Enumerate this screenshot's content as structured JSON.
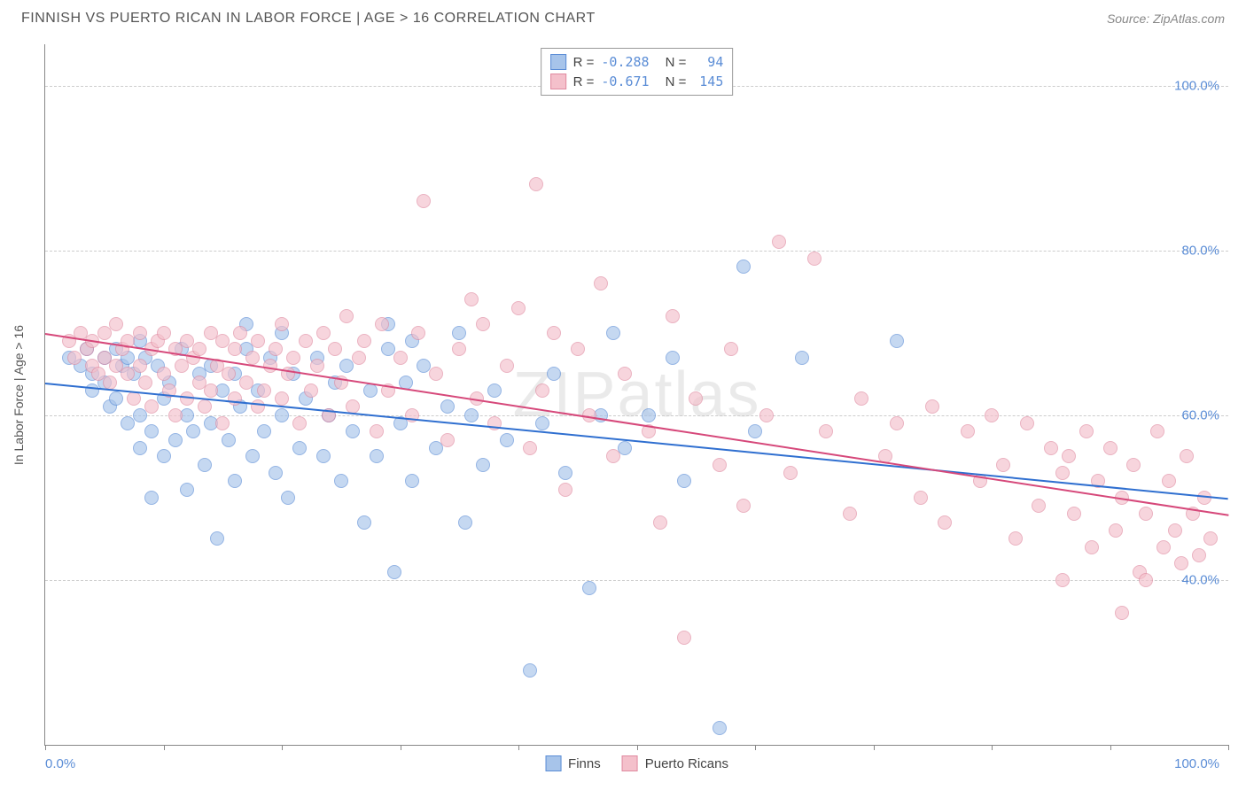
{
  "header": {
    "title": "FINNISH VS PUERTO RICAN IN LABOR FORCE | AGE > 16 CORRELATION CHART",
    "source": "Source: ZipAtlas.com"
  },
  "chart": {
    "type": "scatter",
    "watermark": "ZIPatlas",
    "y_axis_label": "In Labor Force | Age > 16",
    "xlim": [
      0,
      100
    ],
    "ylim": [
      20,
      105
    ],
    "x_min_label": "0.0%",
    "x_max_label": "100.0%",
    "x_ticks": [
      0,
      10,
      20,
      30,
      40,
      50,
      60,
      70,
      80,
      90,
      100
    ],
    "y_ticks": [
      {
        "v": 40,
        "label": "40.0%"
      },
      {
        "v": 60,
        "label": "60.0%"
      },
      {
        "v": 80,
        "label": "80.0%"
      },
      {
        "v": 100,
        "label": "100.0%"
      }
    ],
    "grid_color": "#cccccc",
    "background_color": "#ffffff",
    "marker_size": 16,
    "series": [
      {
        "name": "Finns",
        "fill": "#a7c4ea",
        "stroke": "#5b8dd6",
        "R": "-0.288",
        "N": "94",
        "trend": {
          "x1": 0,
          "y1": 64,
          "x2": 100,
          "y2": 50,
          "color": "#2f6fd0"
        },
        "points": [
          [
            2,
            67
          ],
          [
            3,
            66
          ],
          [
            3.5,
            68
          ],
          [
            4,
            65
          ],
          [
            4,
            63
          ],
          [
            5,
            67
          ],
          [
            5,
            64
          ],
          [
            5.5,
            61
          ],
          [
            6,
            68
          ],
          [
            6,
            62
          ],
          [
            6.5,
            66
          ],
          [
            7,
            67
          ],
          [
            7,
            59
          ],
          [
            7.5,
            65
          ],
          [
            8,
            60
          ],
          [
            8,
            56
          ],
          [
            8.5,
            67
          ],
          [
            9,
            58
          ],
          [
            9,
            50
          ],
          [
            9.5,
            66
          ],
          [
            10,
            62
          ],
          [
            10,
            55
          ],
          [
            10.5,
            64
          ],
          [
            11,
            57
          ],
          [
            11.5,
            68
          ],
          [
            12,
            60
          ],
          [
            12,
            51
          ],
          [
            12.5,
            58
          ],
          [
            13,
            65
          ],
          [
            13.5,
            54
          ],
          [
            14,
            66
          ],
          [
            14,
            59
          ],
          [
            14.5,
            45
          ],
          [
            15,
            63
          ],
          [
            15.5,
            57
          ],
          [
            16,
            65
          ],
          [
            16,
            52
          ],
          [
            16.5,
            61
          ],
          [
            17,
            68
          ],
          [
            17.5,
            55
          ],
          [
            18,
            63
          ],
          [
            18.5,
            58
          ],
          [
            19,
            67
          ],
          [
            19.5,
            53
          ],
          [
            20,
            70
          ],
          [
            20,
            60
          ],
          [
            20.5,
            50
          ],
          [
            21,
            65
          ],
          [
            21.5,
            56
          ],
          [
            22,
            62
          ],
          [
            23,
            67
          ],
          [
            23.5,
            55
          ],
          [
            24,
            60
          ],
          [
            24.5,
            64
          ],
          [
            25,
            52
          ],
          [
            25.5,
            66
          ],
          [
            26,
            58
          ],
          [
            27,
            47
          ],
          [
            27.5,
            63
          ],
          [
            28,
            55
          ],
          [
            29,
            68
          ],
          [
            29.5,
            41
          ],
          [
            30,
            59
          ],
          [
            30.5,
            64
          ],
          [
            31,
            52
          ],
          [
            32,
            66
          ],
          [
            33,
            56
          ],
          [
            34,
            61
          ],
          [
            35,
            70
          ],
          [
            35.5,
            47
          ],
          [
            36,
            60
          ],
          [
            37,
            54
          ],
          [
            38,
            63
          ],
          [
            39,
            57
          ],
          [
            41,
            29
          ],
          [
            42,
            59
          ],
          [
            43,
            65
          ],
          [
            44,
            53
          ],
          [
            46,
            39
          ],
          [
            47,
            60
          ],
          [
            48,
            70
          ],
          [
            49,
            56
          ],
          [
            51,
            60
          ],
          [
            53,
            67
          ],
          [
            54,
            52
          ],
          [
            57,
            22
          ],
          [
            59,
            78
          ],
          [
            60,
            58
          ],
          [
            64,
            67
          ],
          [
            72,
            69
          ],
          [
            29,
            71
          ],
          [
            31,
            69
          ],
          [
            17,
            71
          ],
          [
            8,
            69
          ]
        ]
      },
      {
        "name": "Puerto Ricans",
        "fill": "#f4c0cb",
        "stroke": "#e08aa0",
        "R": "-0.671",
        "N": "145",
        "trend": {
          "x1": 0,
          "y1": 70,
          "x2": 100,
          "y2": 48,
          "color": "#d6487a"
        },
        "points": [
          [
            2,
            69
          ],
          [
            2.5,
            67
          ],
          [
            3,
            70
          ],
          [
            3.5,
            68
          ],
          [
            4,
            66
          ],
          [
            4,
            69
          ],
          [
            4.5,
            65
          ],
          [
            5,
            70
          ],
          [
            5,
            67
          ],
          [
            5.5,
            64
          ],
          [
            6,
            71
          ],
          [
            6,
            66
          ],
          [
            6.5,
            68
          ],
          [
            7,
            65
          ],
          [
            7,
            69
          ],
          [
            7.5,
            62
          ],
          [
            8,
            70
          ],
          [
            8,
            66
          ],
          [
            8.5,
            64
          ],
          [
            9,
            68
          ],
          [
            9,
            61
          ],
          [
            9.5,
            69
          ],
          [
            10,
            65
          ],
          [
            10,
            70
          ],
          [
            10.5,
            63
          ],
          [
            11,
            68
          ],
          [
            11,
            60
          ],
          [
            11.5,
            66
          ],
          [
            12,
            69
          ],
          [
            12,
            62
          ],
          [
            12.5,
            67
          ],
          [
            13,
            64
          ],
          [
            13,
            68
          ],
          [
            13.5,
            61
          ],
          [
            14,
            70
          ],
          [
            14,
            63
          ],
          [
            14.5,
            66
          ],
          [
            15,
            69
          ],
          [
            15,
            59
          ],
          [
            15.5,
            65
          ],
          [
            16,
            68
          ],
          [
            16,
            62
          ],
          [
            16.5,
            70
          ],
          [
            17,
            64
          ],
          [
            17.5,
            67
          ],
          [
            18,
            61
          ],
          [
            18,
            69
          ],
          [
            18.5,
            63
          ],
          [
            19,
            66
          ],
          [
            19.5,
            68
          ],
          [
            20,
            62
          ],
          [
            20,
            71
          ],
          [
            20.5,
            65
          ],
          [
            21,
            67
          ],
          [
            21.5,
            59
          ],
          [
            22,
            69
          ],
          [
            22.5,
            63
          ],
          [
            23,
            66
          ],
          [
            23.5,
            70
          ],
          [
            24,
            60
          ],
          [
            24.5,
            68
          ],
          [
            25,
            64
          ],
          [
            25.5,
            72
          ],
          [
            26,
            61
          ],
          [
            26.5,
            67
          ],
          [
            27,
            69
          ],
          [
            28,
            58
          ],
          [
            28.5,
            71
          ],
          [
            29,
            63
          ],
          [
            30,
            67
          ],
          [
            31,
            60
          ],
          [
            31.5,
            70
          ],
          [
            32,
            86
          ],
          [
            33,
            65
          ],
          [
            34,
            57
          ],
          [
            35,
            68
          ],
          [
            36,
            74
          ],
          [
            36.5,
            62
          ],
          [
            37,
            71
          ],
          [
            38,
            59
          ],
          [
            39,
            66
          ],
          [
            40,
            73
          ],
          [
            41,
            56
          ],
          [
            41.5,
            88
          ],
          [
            42,
            63
          ],
          [
            43,
            70
          ],
          [
            44,
            51
          ],
          [
            45,
            68
          ],
          [
            46,
            60
          ],
          [
            47,
            76
          ],
          [
            48,
            55
          ],
          [
            49,
            65
          ],
          [
            51,
            58
          ],
          [
            52,
            47
          ],
          [
            53,
            72
          ],
          [
            54,
            33
          ],
          [
            55,
            62
          ],
          [
            57,
            54
          ],
          [
            58,
            68
          ],
          [
            59,
            49
          ],
          [
            61,
            60
          ],
          [
            62,
            81
          ],
          [
            63,
            53
          ],
          [
            65,
            79
          ],
          [
            66,
            58
          ],
          [
            68,
            48
          ],
          [
            69,
            62
          ],
          [
            71,
            55
          ],
          [
            72,
            59
          ],
          [
            74,
            50
          ],
          [
            75,
            61
          ],
          [
            76,
            47
          ],
          [
            78,
            58
          ],
          [
            79,
            52
          ],
          [
            80,
            60
          ],
          [
            81,
            54
          ],
          [
            82,
            45
          ],
          [
            83,
            59
          ],
          [
            84,
            49
          ],
          [
            85,
            56
          ],
          [
            86,
            53
          ],
          [
            86.5,
            55
          ],
          [
            87,
            48
          ],
          [
            88,
            58
          ],
          [
            88.5,
            44
          ],
          [
            89,
            52
          ],
          [
            90,
            56
          ],
          [
            90.5,
            46
          ],
          [
            91,
            50
          ],
          [
            92,
            54
          ],
          [
            92.5,
            41
          ],
          [
            93,
            48
          ],
          [
            94,
            58
          ],
          [
            94.5,
            44
          ],
          [
            95,
            52
          ],
          [
            95.5,
            46
          ],
          [
            96,
            42
          ],
          [
            96.5,
            55
          ],
          [
            97,
            48
          ],
          [
            97.5,
            43
          ],
          [
            98,
            50
          ],
          [
            98.5,
            45
          ],
          [
            91,
            36
          ],
          [
            86,
            40
          ],
          [
            93,
            40
          ]
        ]
      }
    ],
    "legend_bottom": [
      {
        "label": "Finns",
        "fill": "#a7c4ea",
        "stroke": "#5b8dd6"
      },
      {
        "label": "Puerto Ricans",
        "fill": "#f4c0cb",
        "stroke": "#e08aa0"
      }
    ]
  }
}
